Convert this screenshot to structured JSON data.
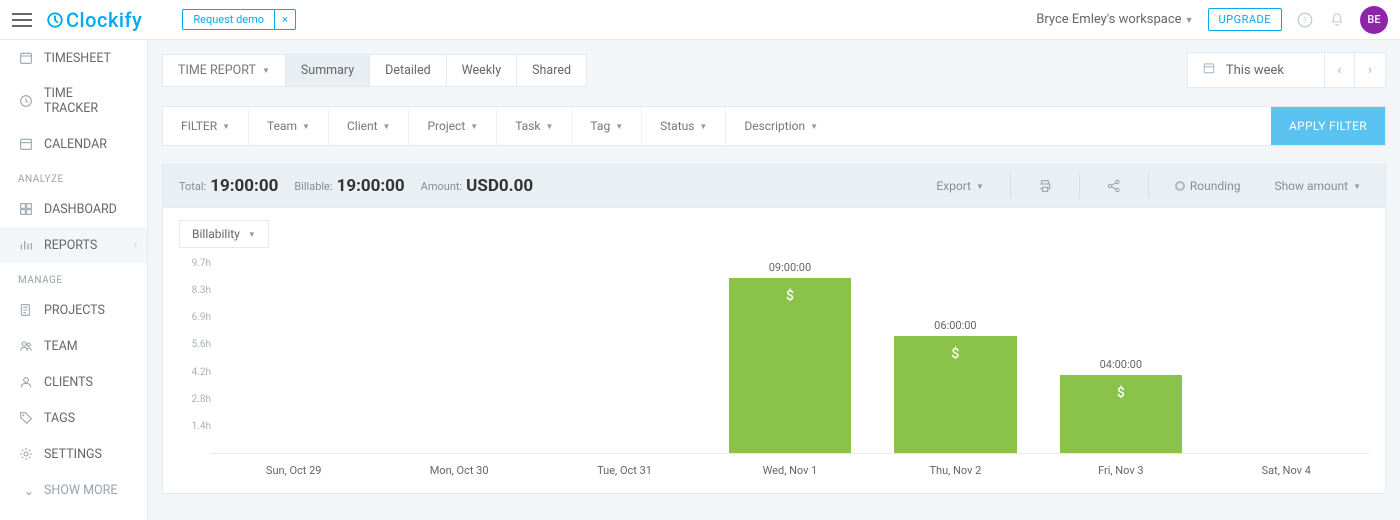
{
  "topbar": {
    "logo": "Clockify",
    "request_demo": "Request demo",
    "demo_close": "×",
    "workspace": "Bryce Emley's workspace",
    "upgrade": "UPGRADE",
    "avatar": "BE"
  },
  "sidebar": {
    "items": [
      {
        "label": "TIMESHEET"
      },
      {
        "label": "TIME TRACKER"
      },
      {
        "label": "CALENDAR"
      }
    ],
    "analyze_label": "ANALYZE",
    "analyze_items": [
      {
        "label": "DASHBOARD"
      },
      {
        "label": "REPORTS"
      }
    ],
    "manage_label": "MANAGE",
    "manage_items": [
      {
        "label": "PROJECTS"
      },
      {
        "label": "TEAM"
      },
      {
        "label": "CLIENTS"
      },
      {
        "label": "TAGS"
      },
      {
        "label": "SETTINGS"
      }
    ],
    "show_more": "SHOW MORE"
  },
  "tabs": {
    "dropdown": "TIME REPORT",
    "items": [
      "Summary",
      "Detailed",
      "Weekly",
      "Shared"
    ]
  },
  "date_range": {
    "label": "This week"
  },
  "filters": {
    "label": "FILTER",
    "items": [
      "Team",
      "Client",
      "Project",
      "Task",
      "Tag",
      "Status",
      "Description"
    ],
    "apply": "APPLY FILTER"
  },
  "stats": {
    "total_label": "Total:",
    "total_value": "19:00:00",
    "billable_label": "Billable:",
    "billable_value": "19:00:00",
    "amount_label": "Amount:",
    "amount_value": "USD0.00",
    "export": "Export",
    "rounding": "Rounding",
    "show_amount": "Show amount"
  },
  "chart": {
    "billability": "Billability",
    "type": "bar",
    "bar_color": "#8bc34a",
    "background_color": "#ffffff",
    "grid_color": "#f4f6f8",
    "y_ticks": [
      "9.7h",
      "8.3h",
      "6.9h",
      "5.6h",
      "4.2h",
      "2.8h",
      "1.4h"
    ],
    "ymax": 9.7,
    "categories": [
      "Sun, Oct 29",
      "Mon, Oct 30",
      "Tue, Oct 31",
      "Wed, Nov 1",
      "Thu, Nov 2",
      "Fri, Nov 3",
      "Sat, Nov 4"
    ],
    "values": [
      0,
      0,
      0,
      9,
      6,
      4,
      0
    ],
    "value_labels": [
      "",
      "",
      "",
      "09:00:00",
      "06:00:00",
      "04:00:00",
      ""
    ],
    "dollar": "$"
  }
}
